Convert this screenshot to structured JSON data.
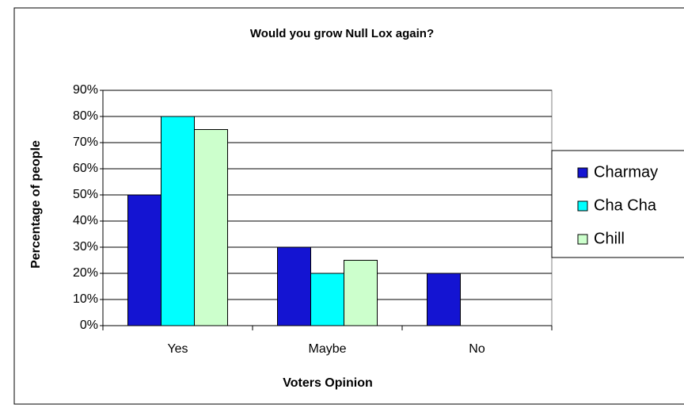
{
  "chart_data": {
    "type": "bar",
    "title": "Would you grow Null Lox again?",
    "x_label": "Voters Opinion",
    "y_label": "Percentage of people",
    "categories": [
      "Yes",
      "Maybe",
      "No"
    ],
    "series": [
      {
        "name": "Charmay",
        "color": "#1414d2",
        "values": [
          50,
          30,
          20
        ]
      },
      {
        "name": "Cha Cha",
        "color": "#00ffff",
        "values": [
          80,
          20,
          0
        ]
      },
      {
        "name": "Chill",
        "color": "#ccffcc",
        "values": [
          75,
          25,
          0
        ]
      }
    ],
    "ylim": [
      0,
      90
    ],
    "yticks": [
      {
        "value": 0,
        "label": "0%"
      },
      {
        "value": 10,
        "label": "10%"
      },
      {
        "value": 20,
        "label": "20%"
      },
      {
        "value": 30,
        "label": "30%"
      },
      {
        "value": 40,
        "label": "40%"
      },
      {
        "value": 50,
        "label": "50%"
      },
      {
        "value": 60,
        "label": "60%"
      },
      {
        "value": 70,
        "label": "70%"
      },
      {
        "value": 80,
        "label": "80%"
      },
      {
        "value": 90,
        "label": "90%"
      }
    ],
    "grid": true,
    "legend": "right"
  }
}
